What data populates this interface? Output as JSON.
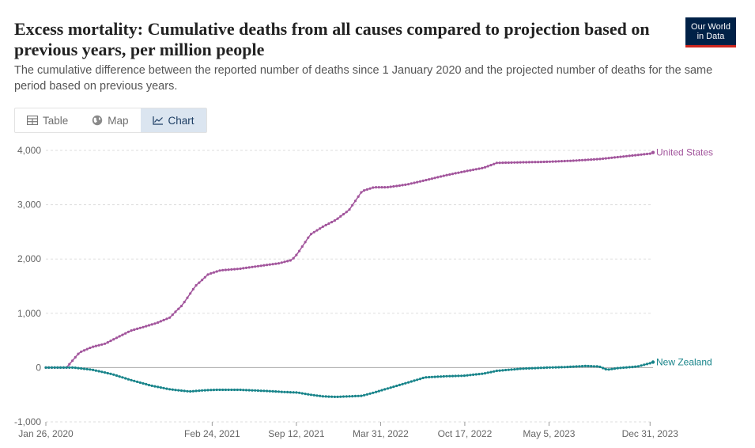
{
  "header": {
    "title": "Excess mortality: Cumulative deaths from all causes compared to projection based on previous years, per million people",
    "subtitle": "The cumulative difference between the reported number of deaths since 1 January 2020 and the projected number of deaths for the same period based on previous years.",
    "logo_line1": "Our World",
    "logo_line2": "in Data"
  },
  "tabs": [
    {
      "label": "Table",
      "icon": "table-icon",
      "active": false
    },
    {
      "label": "Map",
      "icon": "globe-icon",
      "active": false
    },
    {
      "label": "Chart",
      "icon": "line-chart-icon",
      "active": true
    }
  ],
  "colors": {
    "united_states": "#a2559c",
    "new_zealand": "#18848a",
    "grid": "#dddddd",
    "zero_line": "#aaaaaa"
  },
  "chart_data": {
    "type": "line",
    "title": "Excess mortality: Cumulative deaths from all causes compared to projection based on previous years, per million people",
    "ylim": [
      -1000,
      4000
    ],
    "y_ticks": [
      4000,
      3000,
      2000,
      1000,
      0,
      -1000
    ],
    "y_tick_labels": [
      "4,000",
      "3,000",
      "2,000",
      "1,000",
      "0",
      "-1,000"
    ],
    "xlim": [
      "2020-01-26",
      "2024-01-07"
    ],
    "x_ticks": [
      "2020-01-26",
      "2021-02-24",
      "2021-09-12",
      "2022-03-31",
      "2022-10-17",
      "2023-05-05",
      "2023-12-31"
    ],
    "x_tick_labels": [
      "Jan 26, 2020",
      "Feb 24, 2021",
      "Sep 12, 2021",
      "Mar 31, 2022",
      "Oct 17, 2022",
      "May 5, 2023",
      "Dec 31, 2023"
    ],
    "grid": true,
    "series": [
      {
        "name": "United States",
        "color": "#a2559c",
        "points": [
          [
            "2020-01-26",
            0
          ],
          [
            "2020-03-15",
            0
          ],
          [
            "2020-04-15",
            280
          ],
          [
            "2020-05-15",
            380
          ],
          [
            "2020-06-15",
            440
          ],
          [
            "2020-07-15",
            560
          ],
          [
            "2020-08-15",
            680
          ],
          [
            "2020-09-15",
            750
          ],
          [
            "2020-10-15",
            820
          ],
          [
            "2020-11-15",
            920
          ],
          [
            "2020-12-15",
            1150
          ],
          [
            "2021-01-15",
            1500
          ],
          [
            "2021-02-15",
            1720
          ],
          [
            "2021-03-15",
            1790
          ],
          [
            "2021-05-01",
            1820
          ],
          [
            "2021-06-15",
            1870
          ],
          [
            "2021-08-01",
            1920
          ],
          [
            "2021-09-01",
            1980
          ],
          [
            "2021-09-15",
            2100
          ],
          [
            "2021-10-15",
            2450
          ],
          [
            "2021-11-15",
            2600
          ],
          [
            "2021-12-15",
            2720
          ],
          [
            "2022-01-15",
            2900
          ],
          [
            "2022-02-15",
            3250
          ],
          [
            "2022-03-15",
            3320
          ],
          [
            "2022-04-15",
            3320
          ],
          [
            "2022-06-01",
            3370
          ],
          [
            "2022-07-15",
            3450
          ],
          [
            "2022-09-01",
            3540
          ],
          [
            "2022-10-15",
            3610
          ],
          [
            "2022-12-01",
            3680
          ],
          [
            "2023-01-01",
            3770
          ],
          [
            "2023-03-01",
            3780
          ],
          [
            "2023-05-01",
            3790
          ],
          [
            "2023-07-01",
            3810
          ],
          [
            "2023-09-01",
            3840
          ],
          [
            "2023-11-01",
            3890
          ],
          [
            "2023-12-31",
            3940
          ],
          [
            "2024-01-07",
            3960
          ]
        ]
      },
      {
        "name": "New Zealand",
        "color": "#18848a",
        "points": [
          [
            "2020-01-26",
            0
          ],
          [
            "2020-04-01",
            0
          ],
          [
            "2020-05-15",
            -40
          ],
          [
            "2020-07-01",
            -120
          ],
          [
            "2020-08-15",
            -230
          ],
          [
            "2020-10-01",
            -330
          ],
          [
            "2020-11-15",
            -400
          ],
          [
            "2021-01-01",
            -440
          ],
          [
            "2021-02-01",
            -420
          ],
          [
            "2021-03-01",
            -410
          ],
          [
            "2021-05-01",
            -410
          ],
          [
            "2021-07-01",
            -430
          ],
          [
            "2021-08-15",
            -450
          ],
          [
            "2021-09-15",
            -460
          ],
          [
            "2021-10-15",
            -500
          ],
          [
            "2021-11-15",
            -530
          ],
          [
            "2021-12-15",
            -540
          ],
          [
            "2022-01-15",
            -530
          ],
          [
            "2022-02-15",
            -520
          ],
          [
            "2022-03-15",
            -460
          ],
          [
            "2022-04-15",
            -390
          ],
          [
            "2022-05-15",
            -320
          ],
          [
            "2022-06-15",
            -250
          ],
          [
            "2022-07-15",
            -180
          ],
          [
            "2022-09-01",
            -160
          ],
          [
            "2022-10-15",
            -150
          ],
          [
            "2022-12-01",
            -110
          ],
          [
            "2023-01-01",
            -60
          ],
          [
            "2023-03-01",
            -20
          ],
          [
            "2023-05-01",
            0
          ],
          [
            "2023-06-15",
            10
          ],
          [
            "2023-08-01",
            30
          ],
          [
            "2023-09-01",
            20
          ],
          [
            "2023-09-20",
            -40
          ],
          [
            "2023-10-15",
            -10
          ],
          [
            "2023-12-01",
            20
          ],
          [
            "2023-12-31",
            80
          ],
          [
            "2024-01-07",
            100
          ]
        ]
      }
    ]
  }
}
